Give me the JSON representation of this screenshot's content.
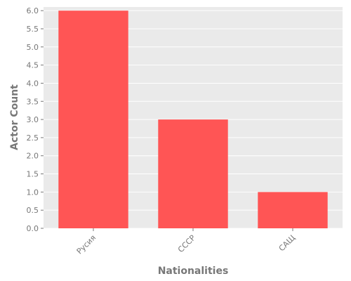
{
  "chart_data": {
    "type": "bar",
    "title": "",
    "xlabel": "Nationalities",
    "ylabel": "Actor Count",
    "categories": [
      "Русия",
      "СССР",
      "САЩ"
    ],
    "values": [
      6,
      3,
      1
    ],
    "ylim": [
      0,
      6.1
    ],
    "yticks": [
      0.0,
      0.5,
      1.0,
      1.5,
      2.0,
      2.5,
      3.0,
      3.5,
      4.0,
      4.5,
      5.0,
      5.5,
      6.0
    ],
    "grid": true,
    "legend": "none",
    "colors": {
      "bar": "#ff5555",
      "plot_background": "#eaeaea",
      "grid": "#ffffff",
      "text": "#777777"
    }
  }
}
